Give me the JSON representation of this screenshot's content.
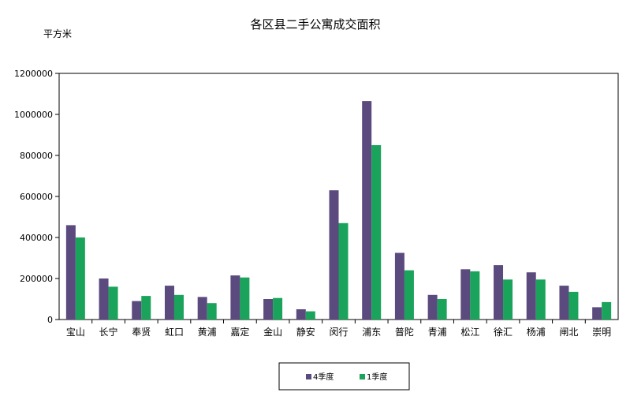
{
  "chart_data": {
    "type": "bar",
    "title": "各区县二手公寓成交面积",
    "unit_label": "平方米",
    "xlabel": "",
    "ylabel": "",
    "ylim": [
      0,
      1200000
    ],
    "yticks": [
      "0",
      "200000",
      "400000",
      "600000",
      "800000",
      "1000000",
      "1200000"
    ],
    "categories": [
      "宝山",
      "长宁",
      "奉贤",
      "虹口",
      "黄浦",
      "嘉定",
      "金山",
      "静安",
      "闵行",
      "浦东",
      "普陀",
      "青浦",
      "松江",
      "徐汇",
      "杨浦",
      "闸北",
      "崇明"
    ],
    "series": [
      {
        "name": "4季度",
        "color": "#5b4a7e",
        "values": [
          460000,
          200000,
          90000,
          165000,
          110000,
          215000,
          100000,
          50000,
          630000,
          1065000,
          325000,
          120000,
          245000,
          265000,
          230000,
          165000,
          60000
        ]
      },
      {
        "name": "1季度",
        "color": "#1aa35a",
        "values": [
          400000,
          160000,
          115000,
          120000,
          80000,
          205000,
          105000,
          40000,
          470000,
          850000,
          240000,
          100000,
          235000,
          195000,
          195000,
          135000,
          85000
        ]
      }
    ],
    "grid": false,
    "legend_position": "bottom"
  }
}
